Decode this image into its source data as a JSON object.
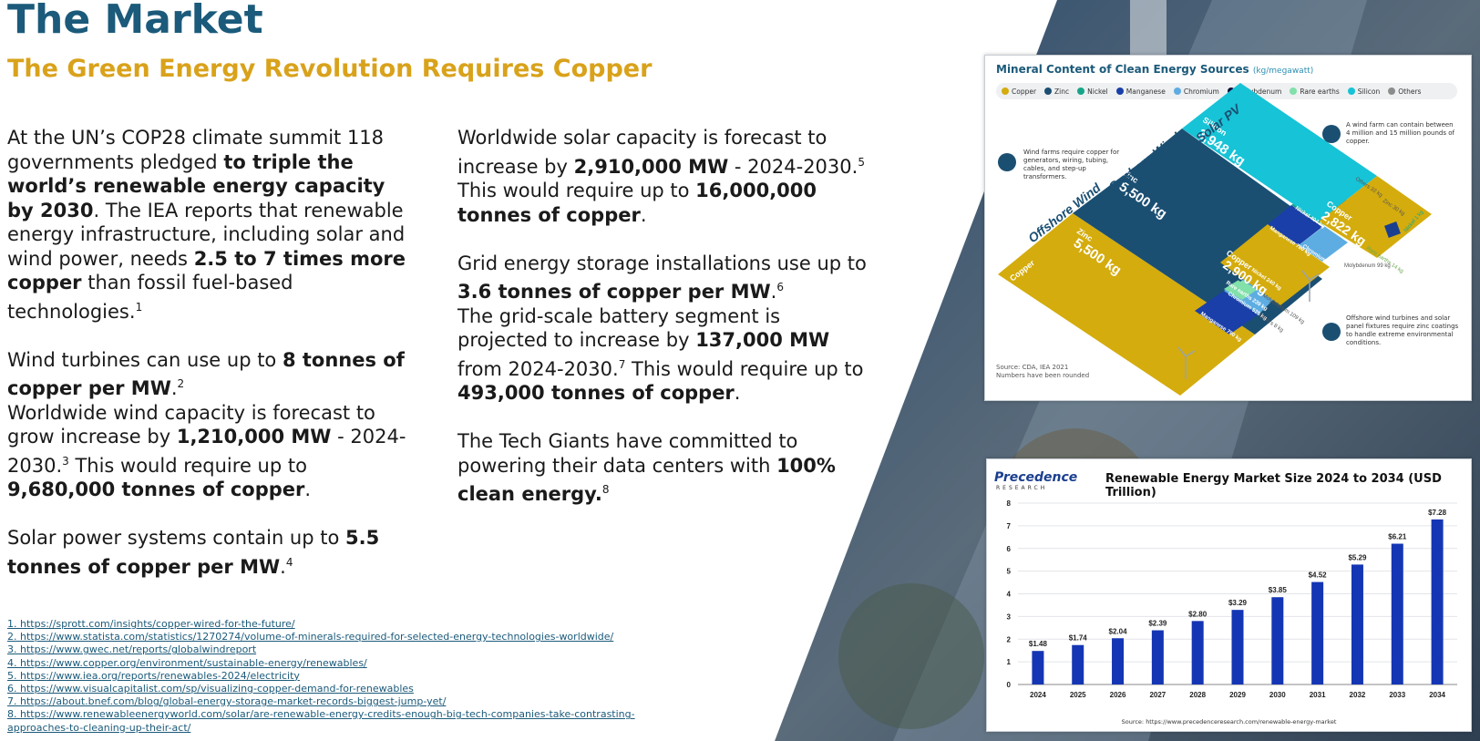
{
  "header": {
    "title": "The Market",
    "subtitle": "The Green Energy Revolution Requires Copper"
  },
  "col1": {
    "p1_a": "At the UN’s COP28 climate summit 118 governments pledged ",
    "p1_b": "to triple the world’s renewable energy capacity by 2030",
    "p1_c": ". The IEA reports that renewable energy infrastructure, including solar and wind power, needs ",
    "p1_d": "2.5 to 7 times more copper",
    "p1_e": " than fossil fuel-based technologies.",
    "p1_sup": "1",
    "p2_a": "Wind turbines can use up to ",
    "p2_b": "8 tonnes of copper per MW",
    "p2_c": ".",
    "p2_sup": "2",
    "p2_d": "Worldwide wind capacity is forecast to grow increase by ",
    "p2_e": "1,210,000 MW",
    "p2_f": " - 2024-2030.",
    "p2_sup2": "3",
    "p2_g": " This would require up to ",
    "p2_h": "9,680,000 tonnes of copper",
    "p2_i": ".",
    "p3_a": "Solar power systems contain up to ",
    "p3_b": "5.5 tonnes of copper per MW",
    "p3_c": ".",
    "p3_sup": "4"
  },
  "col2": {
    "p1_a": "Worldwide solar capacity is forecast to increase by ",
    "p1_b": "2,910,000 MW",
    "p1_c": " - 2024-2030.",
    "p1_sup": "5",
    "p1_d": " This would require up to ",
    "p1_e": "16,000,000 tonnes of copper",
    "p1_f": ".",
    "p2_a": "Grid energy storage installations use up to ",
    "p2_b": "3.6 tonnes of copper per MW",
    "p2_c": ".",
    "p2_sup": "6",
    "p2_d": "The grid-scale battery segment is projected to increase by ",
    "p2_e": "137,000 MW",
    "p2_f": " from 2024-2030.",
    "p2_sup2": "7",
    "p2_g": " This would require up to ",
    "p2_h": "493,000 tonnes of copper",
    "p2_i": ".",
    "p3_a": "The Tech Giants have committed to powering their data centers with ",
    "p3_b": "100% clean energy.",
    "p3_sup": "8"
  },
  "references": [
    "1. https://sprott.com/insights/copper-wired-for-the-future/",
    "2. https://www.statista.com/statistics/1270274/volume-of-minerals-required-for-selected-energy-technologies-worldwide/",
    "3. https://www.gwec.net/reports/globalwindreport",
    "4. https://www.copper.org/environment/sustainable-energy/renewables/",
    "5. https://www.iea.org/reports/renewables-2024/electricity",
    "6. https://www.visualcapitalist.com/sp/visualizing-copper-demand-for-renewables",
    "7. https://about.bnef.com/blog/global-energy-storage-market-records-biggest-jump-yet/",
    "8. https://www.renewableenergyworld.com/solar/are-renewable-energy-credits-enough-big-tech-companies-take-contrasting-",
    "approaches-to-cleaning-up-their-act/"
  ],
  "mineral_chart": {
    "title": "Mineral Content of Clean Energy Sources",
    "unit": "(kg/megawatt)",
    "legend": [
      {
        "name": "Copper",
        "color": "#d4ac0d"
      },
      {
        "name": "Zinc",
        "color": "#1b4f72"
      },
      {
        "name": "Nickel",
        "color": "#17a589"
      },
      {
        "name": "Manganese",
        "color": "#1a3fa8"
      },
      {
        "name": "Chromium",
        "color": "#5dade2"
      },
      {
        "name": "Molybdenum",
        "color": "#0b0b3b"
      },
      {
        "name": "Rare earths",
        "color": "#82e0aa"
      },
      {
        "name": "Silicon",
        "color": "#17c3d6"
      },
      {
        "name": "Others",
        "color": "#8c8c8c"
      }
    ],
    "note_wind": "Wind farms require copper for generators, wiring, tubing, cables, and step-up transformers.",
    "note_farm": "A wind farm can contain between 4 million and 15 million pounds of copper.",
    "note_offshore": "Offshore wind turbines and solar panel fixtures require zinc coatings to handle extreme environmental conditions.",
    "sections": [
      "Offshore Wind",
      "Onshore Wind",
      "Solar PV"
    ],
    "labels": {
      "off_copper_name": "Copper",
      "off_copper_val": "8,000 kg",
      "off_zinc_name": "Zinc",
      "off_zinc_val": "5,500 kg",
      "off_mang": "Manganese 790 kg",
      "off_chrom": "Chromium 525 kg",
      "off_nickel": "Nickel 240 kg",
      "off_rare": "Rare earths 239 kg",
      "off_moly": "Molybdenum 109 kg",
      "off_others": "Others 8 kg",
      "on_zinc_name": "Zinc",
      "on_zinc_val": "5,500 kg",
      "on_copper_name": "Copper",
      "on_copper_val": "2,900 kg",
      "on_mang": "Manganese 780 kg",
      "on_chrom": "Chromium 470 kg",
      "on_nickel": "Nickel 404 kg",
      "on_moly": "Molybdenum 99 kg",
      "on_rare": "Rare earths 14 kg",
      "sol_silicon_name": "Silicon",
      "sol_silicon_val": "3,948 kg",
      "sol_copper_name": "Copper",
      "sol_copper_val": "2,822 kg",
      "sol_others": "Others 32 kg",
      "sol_zinc": "Zinc 30 kg",
      "sol_nickel": "Nickel 1 kg"
    },
    "source": "Source: CDA, IEA 2021",
    "rounded": "Numbers have been rounded"
  },
  "market_chart": {
    "logo": "Precedence",
    "logo_sub": "RESEARCH",
    "title": "Renewable Energy Market Size 2024 to 2034 (USD Trillion)",
    "source": "Source: https://www.precedenceresearch.com/renewable-energy-market"
  },
  "chart_data": {
    "type": "bar",
    "title": "Renewable Energy Market Size 2024 to 2034 (USD Trillion)",
    "categories": [
      "2024",
      "2025",
      "2026",
      "2027",
      "2028",
      "2029",
      "2030",
      "2031",
      "2032",
      "2033",
      "2034"
    ],
    "values": [
      1.48,
      1.74,
      2.04,
      2.39,
      2.8,
      3.29,
      3.85,
      4.52,
      5.29,
      6.21,
      7.28
    ],
    "value_labels": [
      "$1.48",
      "$1.74",
      "$2.04",
      "$2.39",
      "$2.80",
      "$3.29",
      "$3.85",
      "$4.52",
      "$5.29",
      "$6.21",
      "$7.28"
    ],
    "yticks": [
      "0",
      "1",
      "2",
      "3",
      "4",
      "5",
      "6",
      "7",
      "8"
    ],
    "ylim": [
      0,
      8
    ],
    "bar_color": "#1436b4",
    "grid": true,
    "xlabel": "",
    "ylabel": ""
  }
}
